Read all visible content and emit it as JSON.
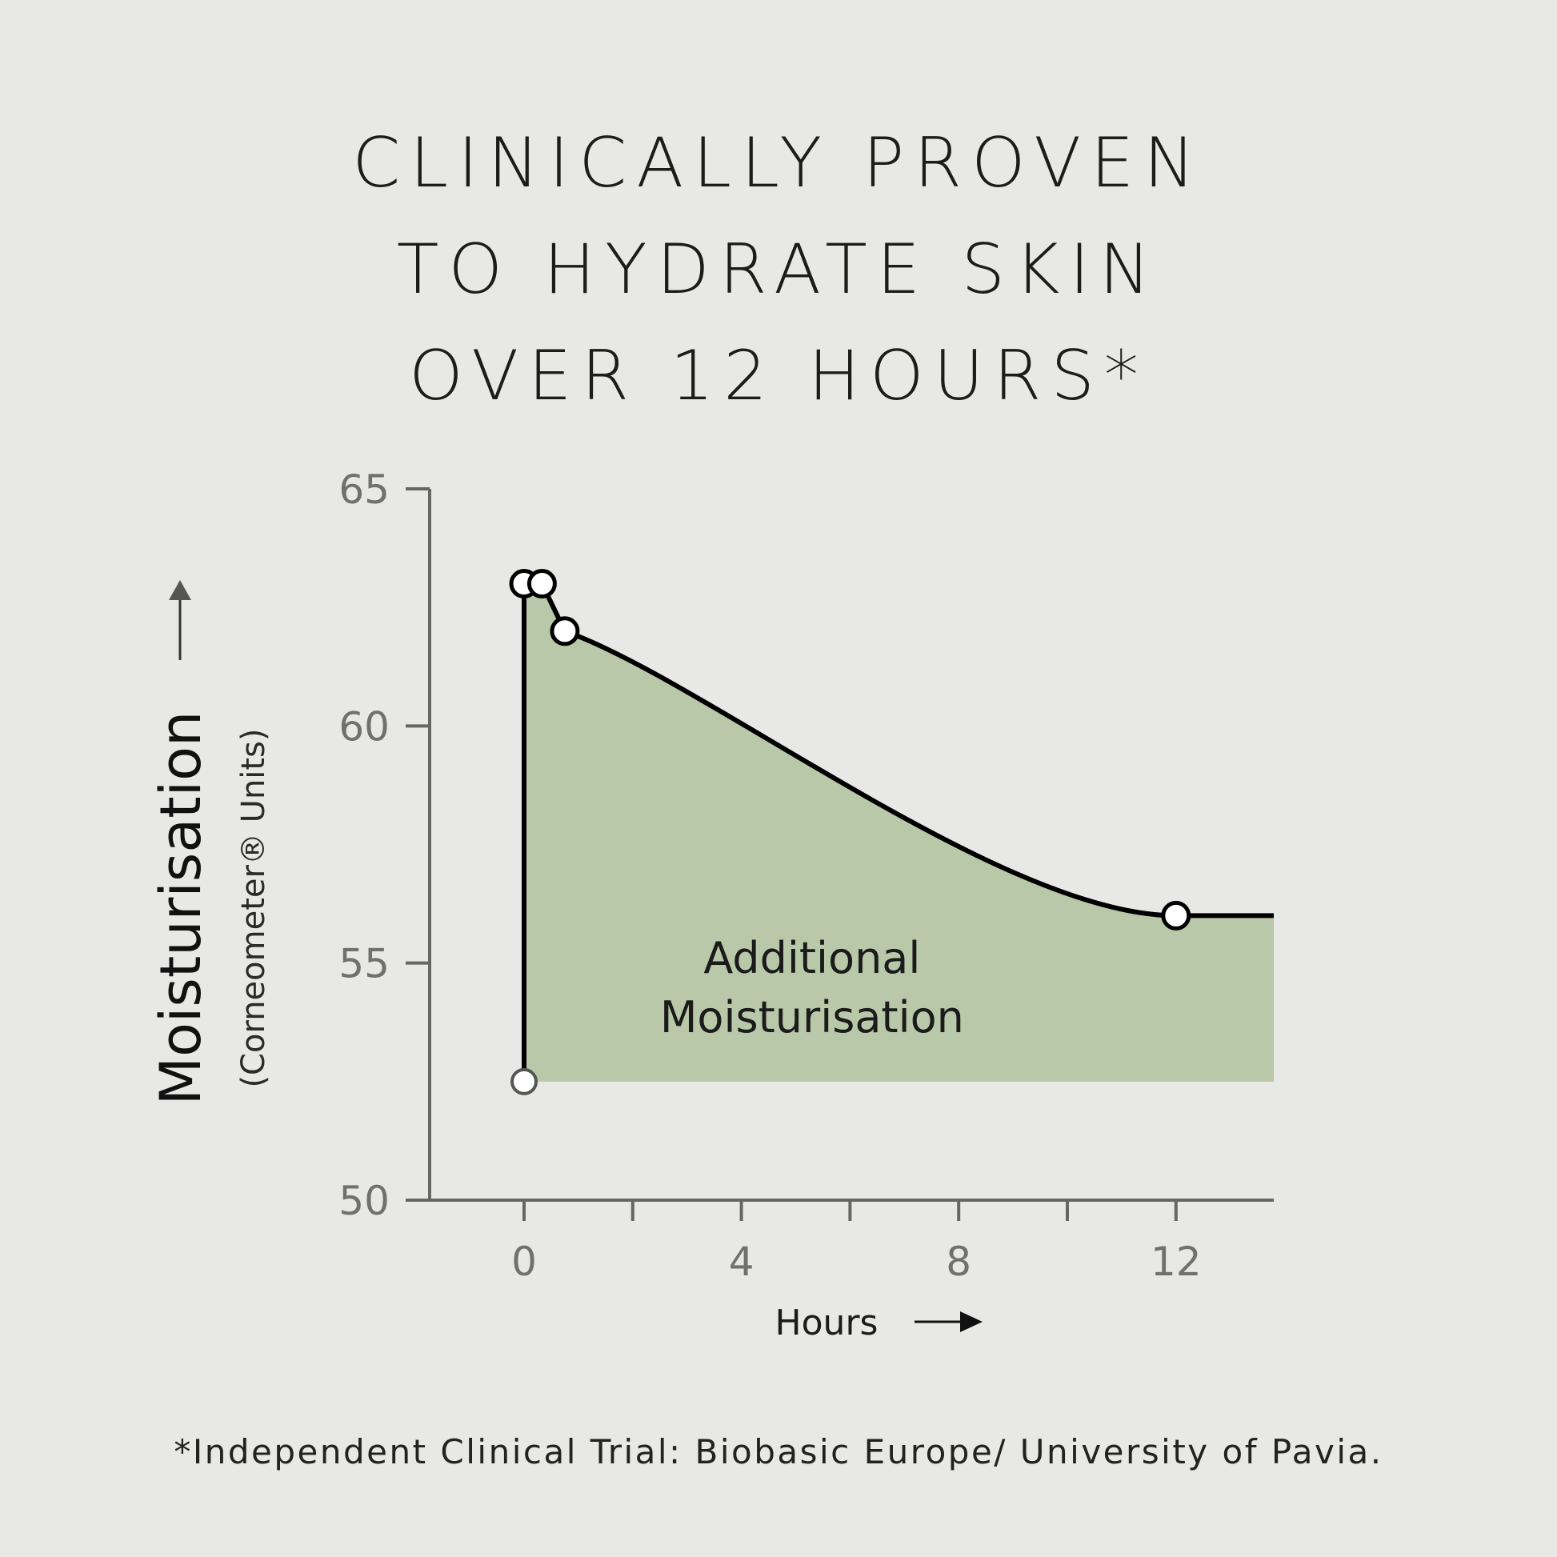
{
  "headline": {
    "lines": [
      "CLINICALLY PROVEN",
      "TO HYDRATE SKIN",
      "OVER 12 HOURS*"
    ]
  },
  "footnote": "*Independent Clinical Trial: Biobasic Europe/ University of Pavia.",
  "colors": {
    "background": "#e8e8e7",
    "area_fill": "#b9c8a8",
    "axis": "#666666",
    "line": "#000000",
    "marker_fill": "#ffffff"
  },
  "chart_data": {
    "type": "area",
    "ylabel": "Moisturisation",
    "ylabel_sub": "(Corneometer® Units)",
    "xlabel": "Hours",
    "ylim": [
      50,
      65
    ],
    "xlim": [
      0,
      13.8
    ],
    "yticks": [
      50,
      55,
      60,
      65
    ],
    "xticks_labeled": [
      0,
      4,
      8,
      12
    ],
    "xticks_minor": [
      0,
      2,
      4,
      6,
      8,
      10,
      12
    ],
    "baseline": 52.5,
    "points": [
      {
        "x": 0,
        "y": 52.5
      },
      {
        "x": 0,
        "y": 63
      },
      {
        "x": 0.33,
        "y": 63
      },
      {
        "x": 0.75,
        "y": 62
      },
      {
        "x": 12,
        "y": 56
      }
    ],
    "extends_to_x": 13.8,
    "area_label": [
      "Additional",
      "Moisturisation"
    ],
    "grid": false
  }
}
